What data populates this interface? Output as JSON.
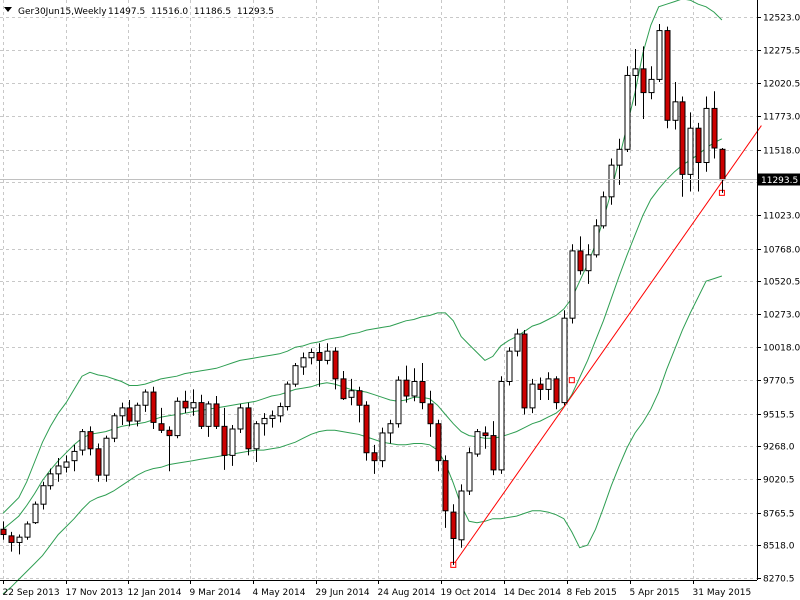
{
  "header": {
    "symbol": "Ger30Jun15,Weekly",
    "ohlc": "11497.5  11516.0  11186.5  11293.5"
  },
  "colors": {
    "background": "#ffffff",
    "grid": "#c8c8c8",
    "bull_body": "#ffffff",
    "bear_body": "#cc0000",
    "candle_outline": "#000000",
    "bands": "#2e9e52",
    "trendline": "#ff0000",
    "current_price_box": "#000000",
    "current_price_text": "#ffffff"
  },
  "chart_data": {
    "type": "candlestick",
    "timeframe": "Weekly",
    "ylim": [
      8200,
      12650
    ],
    "y_ticks": [
      "12523.0",
      "12275.5",
      "12020.5",
      "11773.0",
      "11518.0",
      "11270.5",
      "11023.0",
      "10768.0",
      "10520.5",
      "10273.0",
      "10018.0",
      "9770.5",
      "9515.5",
      "9268.0",
      "9020.5",
      "8765.5",
      "8518.0",
      "8270.5"
    ],
    "x_ticks": [
      "22 Sep 2013",
      "17 Nov 2013",
      "12 Jan 2014",
      "9 Mar 2014",
      "4 May 2014",
      "29 Jun 2014",
      "24 Aug 2014",
      "19 Oct 2014",
      "14 Dec 2014",
      "8 Feb 2015",
      "5 Apr 2015",
      "31 May 2015"
    ],
    "current_price": "11293.5",
    "grid": true,
    "ohlc": [
      [
        8640,
        8700,
        8560,
        8600
      ],
      [
        8590,
        8620,
        8470,
        8540
      ],
      [
        8540,
        8600,
        8450,
        8580
      ],
      [
        8580,
        8700,
        8560,
        8680
      ],
      [
        8690,
        8850,
        8680,
        8830
      ],
      [
        8830,
        9000,
        8790,
        8970
      ],
      [
        8970,
        9100,
        8940,
        9060
      ],
      [
        9060,
        9180,
        9000,
        9120
      ],
      [
        9110,
        9200,
        9070,
        9150
      ],
      [
        9160,
        9280,
        9080,
        9230
      ],
      [
        9240,
        9400,
        9200,
        9380
      ],
      [
        9380,
        9420,
        9200,
        9250
      ],
      [
        9250,
        9290,
        9000,
        9050
      ],
      [
        9050,
        9350,
        9000,
        9330
      ],
      [
        9330,
        9520,
        9300,
        9500
      ],
      [
        9500,
        9600,
        9430,
        9560
      ],
      [
        9560,
        9620,
        9420,
        9460
      ],
      [
        9460,
        9600,
        9420,
        9580
      ],
      [
        9580,
        9700,
        9530,
        9680
      ],
      [
        9680,
        9720,
        9400,
        9450
      ],
      [
        9440,
        9560,
        9370,
        9390
      ],
      [
        9390,
        9420,
        9080,
        9350
      ],
      [
        9350,
        9640,
        9330,
        9610
      ],
      [
        9610,
        9690,
        9520,
        9560
      ],
      [
        9560,
        9700,
        9500,
        9600
      ],
      [
        9600,
        9660,
        9400,
        9420
      ],
      [
        9420,
        9610,
        9340,
        9590
      ],
      [
        9590,
        9650,
        9400,
        9420
      ],
      [
        9420,
        9560,
        9090,
        9200
      ],
      [
        9200,
        9430,
        9120,
        9400
      ],
      [
        9400,
        9590,
        9370,
        9560
      ],
      [
        9560,
        9600,
        9200,
        9250
      ],
      [
        9250,
        9460,
        9150,
        9440
      ],
      [
        9440,
        9520,
        9350,
        9480
      ],
      [
        9480,
        9540,
        9410,
        9500
      ],
      [
        9500,
        9600,
        9450,
        9570
      ],
      [
        9570,
        9760,
        9540,
        9740
      ],
      [
        9740,
        9900,
        9720,
        9880
      ],
      [
        9870,
        9980,
        9810,
        9940
      ],
      [
        9940,
        10010,
        9890,
        9980
      ],
      [
        9980,
        10050,
        9720,
        9920
      ],
      [
        9920,
        10050,
        9890,
        9990
      ],
      [
        9990,
        10020,
        9700,
        9780
      ],
      [
        9780,
        9840,
        9620,
        9630
      ],
      [
        9640,
        9780,
        9580,
        9690
      ],
      [
        9690,
        9720,
        9450,
        9580
      ],
      [
        9580,
        9610,
        9160,
        9220
      ],
      [
        9220,
        9280,
        9060,
        9160
      ],
      [
        9160,
        9410,
        9110,
        9370
      ],
      [
        9370,
        9470,
        9290,
        9440
      ],
      [
        9440,
        9800,
        9410,
        9770
      ],
      [
        9770,
        9880,
        9600,
        9650
      ],
      [
        9650,
        9860,
        9610,
        9760
      ],
      [
        9760,
        9900,
        9550,
        9600
      ],
      [
        9590,
        9690,
        9340,
        9440
      ],
      [
        9440,
        9470,
        9080,
        9160
      ],
      [
        9160,
        9200,
        8650,
        8780
      ],
      [
        8770,
        8830,
        8370,
        8570
      ],
      [
        8560,
        8980,
        8500,
        8930
      ],
      [
        8930,
        9260,
        8900,
        9220
      ],
      [
        9210,
        9400,
        9190,
        9380
      ],
      [
        9370,
        9420,
        9250,
        9350
      ],
      [
        9350,
        9460,
        9050,
        9090
      ],
      [
        9090,
        9800,
        9060,
        9760
      ],
      [
        9760,
        10020,
        9730,
        9990
      ],
      [
        9990,
        10160,
        9950,
        10120
      ],
      [
        10120,
        10150,
        9510,
        9560
      ],
      [
        9560,
        9780,
        9520,
        9740
      ],
      [
        9740,
        9790,
        9620,
        9700
      ],
      [
        9700,
        9830,
        9620,
        9780
      ],
      [
        9780,
        9800,
        9550,
        9600
      ],
      [
        9600,
        10300,
        9580,
        10240
      ],
      [
        10240,
        10800,
        10200,
        10750
      ],
      [
        10750,
        10860,
        10570,
        10600
      ],
      [
        10600,
        10800,
        10500,
        10720
      ],
      [
        10720,
        10990,
        10700,
        10940
      ],
      [
        10940,
        11200,
        10920,
        11160
      ],
      [
        11160,
        11450,
        11100,
        11400
      ],
      [
        11400,
        11600,
        11250,
        11520
      ],
      [
        11520,
        12150,
        11500,
        12080
      ],
      [
        12080,
        12280,
        11850,
        12130
      ],
      [
        12130,
        12300,
        11750,
        11950
      ],
      [
        11950,
        12150,
        11900,
        12050
      ],
      [
        12050,
        12470,
        12030,
        12420
      ],
      [
        12420,
        12450,
        11680,
        11740
      ],
      [
        11740,
        12030,
        11670,
        11880
      ],
      [
        11880,
        11920,
        11160,
        11330
      ],
      [
        11330,
        11800,
        11200,
        11680
      ],
      [
        11680,
        11720,
        11200,
        11420
      ],
      [
        11420,
        11920,
        11350,
        11830
      ],
      [
        11830,
        11960,
        11450,
        11530
      ],
      [
        11520,
        11530,
        11190,
        11290
      ]
    ],
    "bollinger": {
      "upper": [
        8760,
        8820,
        8880,
        9000,
        9150,
        9300,
        9420,
        9520,
        9600,
        9700,
        9800,
        9830,
        9810,
        9800,
        9780,
        9760,
        9730,
        9730,
        9740,
        9760,
        9780,
        9790,
        9800,
        9820,
        9830,
        9840,
        9850,
        9860,
        9880,
        9900,
        9920,
        9930,
        9940,
        9950,
        9960,
        9970,
        9990,
        10020,
        10030,
        10050,
        10060,
        10080,
        10090,
        10100,
        10120,
        10130,
        10150,
        10160,
        10170,
        10180,
        10200,
        10220,
        10230,
        10250,
        10260,
        10280,
        10280,
        10220,
        10100,
        10040,
        9980,
        9920,
        9950,
        10030,
        10070,
        10100,
        10140,
        10180,
        10200,
        10230,
        10260,
        10310,
        10390,
        10520,
        10650,
        10800,
        10990,
        11200,
        11450,
        11700,
        11950,
        12250,
        12460,
        12600,
        12620,
        12640,
        12660,
        12650,
        12620,
        12600,
        12560,
        12500
      ],
      "middle": [
        8640,
        8690,
        8740,
        8820,
        8910,
        9010,
        9090,
        9160,
        9220,
        9280,
        9330,
        9360,
        9370,
        9380,
        9400,
        9420,
        9430,
        9440,
        9450,
        9470,
        9490,
        9500,
        9510,
        9520,
        9530,
        9540,
        9550,
        9560,
        9570,
        9580,
        9590,
        9600,
        9610,
        9630,
        9650,
        9660,
        9680,
        9700,
        9710,
        9720,
        9740,
        9750,
        9740,
        9720,
        9700,
        9690,
        9680,
        9660,
        9640,
        9620,
        9610,
        9620,
        9640,
        9640,
        9630,
        9580,
        9510,
        9440,
        9380,
        9350,
        9340,
        9330,
        9330,
        9340,
        9360,
        9380,
        9410,
        9440,
        9460,
        9490,
        9520,
        9570,
        9660,
        9790,
        9920,
        10070,
        10220,
        10390,
        10560,
        10720,
        10870,
        11020,
        11140,
        11220,
        11290,
        11350,
        11400,
        11440,
        11480,
        11530,
        11570,
        11600
      ],
      "lower": [
        8150,
        8200,
        8260,
        8320,
        8380,
        8440,
        8520,
        8600,
        8660,
        8720,
        8790,
        8850,
        8880,
        8900,
        8930,
        8970,
        9010,
        9050,
        9080,
        9100,
        9110,
        9130,
        9140,
        9150,
        9160,
        9170,
        9180,
        9190,
        9200,
        9210,
        9220,
        9230,
        9240,
        9240,
        9250,
        9260,
        9280,
        9300,
        9330,
        9360,
        9380,
        9390,
        9390,
        9380,
        9370,
        9360,
        9340,
        9320,
        9300,
        9290,
        9280,
        9280,
        9290,
        9290,
        9280,
        9240,
        9140,
        8990,
        8820,
        8700,
        8690,
        8700,
        8720,
        8720,
        8730,
        8740,
        8760,
        8780,
        8780,
        8770,
        8750,
        8720,
        8620,
        8500,
        8520,
        8640,
        8800,
        8970,
        9120,
        9260,
        9370,
        9450,
        9550,
        9680,
        9850,
        10000,
        10150,
        10280,
        10400,
        10520,
        10540,
        10560
      ]
    },
    "trendline": {
      "from": [
        57,
        8370
      ],
      "to": [
        96,
        11700
      ],
      "anchors": [
        [
          57,
          8370
        ],
        [
          72,
          9770
        ],
        [
          91,
          11190
        ]
      ]
    }
  }
}
